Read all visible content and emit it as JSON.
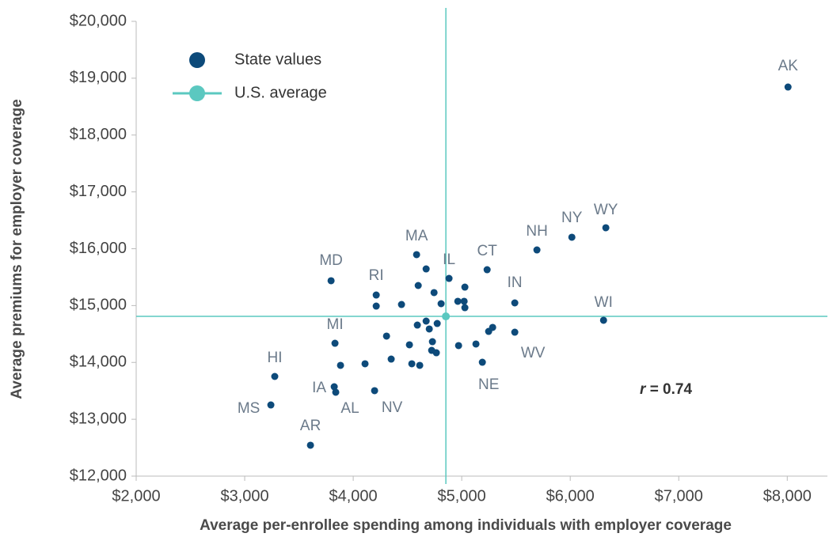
{
  "chart_data": {
    "type": "scatter",
    "xlabel": "Average per-enrollee spending among individuals with employer coverage",
    "ylabel": "Average premiums for employer coverage",
    "annotation_var": "r",
    "annotation_text": "= 0.74",
    "xlim": [
      2000,
      8370
    ],
    "ylim": [
      12000,
      20000
    ],
    "xticks": [
      {
        "value": 2000,
        "label": "$2,000"
      },
      {
        "value": 3000,
        "label": "$3,000"
      },
      {
        "value": 4000,
        "label": "$4,000"
      },
      {
        "value": 5000,
        "label": "$5,000"
      },
      {
        "value": 6000,
        "label": "$6,000"
      },
      {
        "value": 7000,
        "label": "$7,000"
      },
      {
        "value": 8000,
        "label": "$8,000"
      }
    ],
    "yticks": [
      {
        "value": 12000,
        "label": "$12,000"
      },
      {
        "value": 13000,
        "label": "$13,000"
      },
      {
        "value": 14000,
        "label": "$14,000"
      },
      {
        "value": 15000,
        "label": "$15,000"
      },
      {
        "value": 16000,
        "label": "$16,000"
      },
      {
        "value": 17000,
        "label": "$17,000"
      },
      {
        "value": 18000,
        "label": "$18,000"
      },
      {
        "value": 19000,
        "label": "$19,000"
      },
      {
        "value": 20000,
        "label": "$20,000"
      }
    ],
    "series": [
      {
        "name": "State values",
        "color": "#0d4a7a",
        "x": [
          8007,
          6328,
          6015,
          5693,
          5234,
          5489,
          6307,
          5489,
          5190,
          4584,
          4883,
          3796,
          4212,
          3832,
          3277,
          3825,
          3839,
          4197,
          3241,
          3606,
          4212,
          4672,
          4599,
          4745,
          4810,
          4964,
          5029,
          5022,
          5029,
          4445,
          4672,
          4591,
          4701,
          4774,
          4730,
          4723,
          4766,
          4518,
          4307,
          4971,
          5131,
          5248,
          5285,
          4350,
          4540,
          4613,
          4109,
          3883
        ],
        "values": [
          18845,
          16369,
          16202,
          15979,
          15631,
          15047,
          14741,
          14532,
          14003,
          15896,
          15478,
          15437,
          15186,
          14337,
          13753,
          13572,
          13475,
          13503,
          13252,
          12543,
          14991,
          15645,
          15353,
          15228,
          15033,
          15075,
          15325,
          15075,
          14963,
          15019,
          14727,
          14657,
          14588,
          14685,
          14365,
          14212,
          14170,
          14310,
          14463,
          14296,
          14324,
          14546,
          14616,
          14059,
          13976,
          13948,
          13976,
          13948
        ],
        "labels": [
          "AK",
          "WY",
          "NY",
          "NH",
          "CT",
          "IN",
          "WI",
          "WV",
          "NE",
          "MA",
          "IL",
          "MD",
          "RI",
          "MI",
          "HI",
          "IA",
          "AL",
          "NV",
          "MS",
          "AR",
          null,
          null,
          null,
          null,
          null,
          null,
          null,
          null,
          null,
          null,
          null,
          null,
          null,
          null,
          null,
          null,
          null,
          null,
          null,
          null,
          null,
          null,
          null,
          null,
          null,
          null,
          null,
          null
        ]
      },
      {
        "name": "U.S. average",
        "color": "#5bc8c0",
        "x": [
          4854
        ],
        "values": [
          14810
        ]
      }
    ]
  }
}
